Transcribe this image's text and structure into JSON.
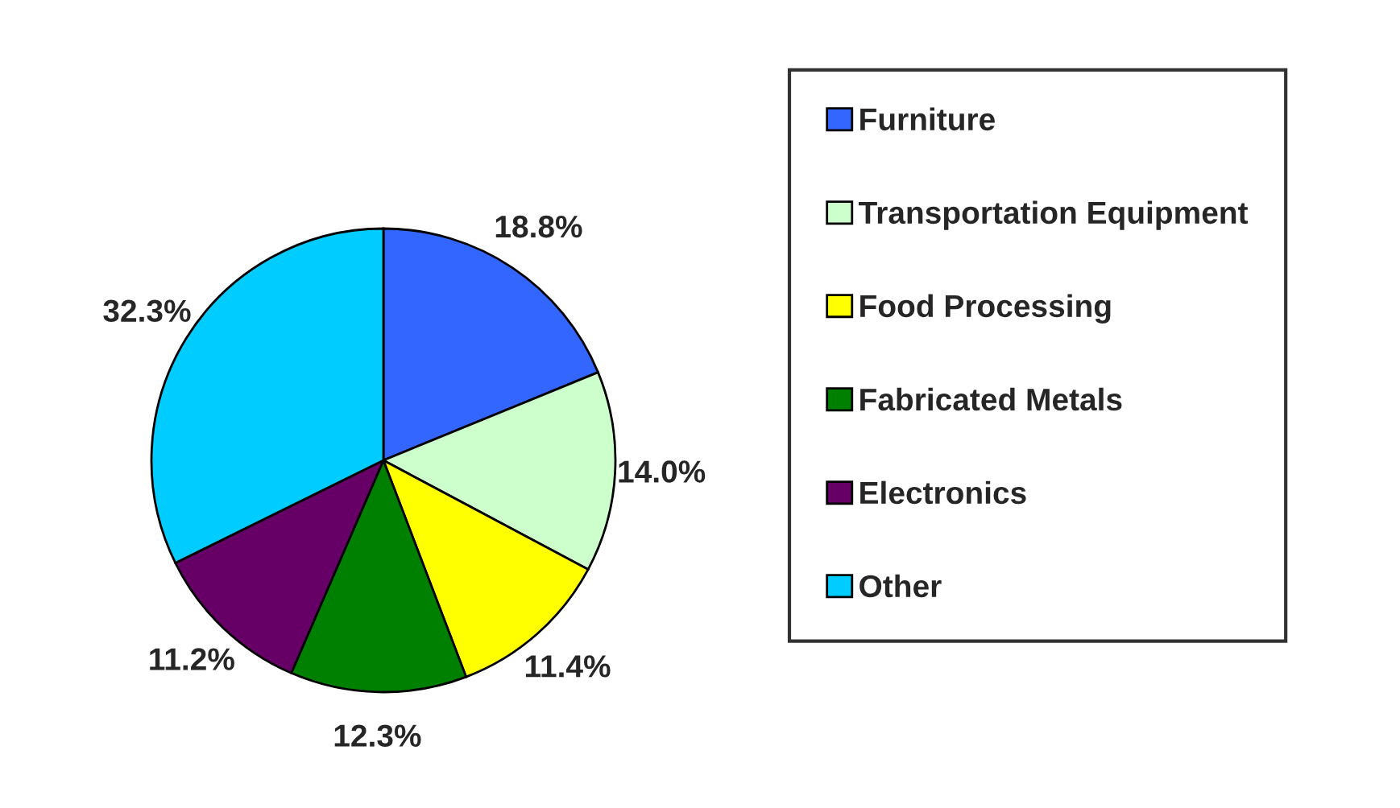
{
  "chart_data": {
    "type": "pie",
    "categories": [
      "Furniture",
      "Transportation Equipment",
      "Food Processing",
      "Fabricated Metals",
      "Electronics",
      "Other"
    ],
    "values": [
      18.8,
      14.0,
      11.4,
      12.3,
      11.2,
      32.3
    ],
    "colors": [
      "#3366ff",
      "#ccffcc",
      "#ffff00",
      "#008000",
      "#660066",
      "#00ccff"
    ],
    "value_labels": [
      "18.8%",
      "14.0%",
      "11.4%",
      "12.3%",
      "11.2%",
      "32.3%"
    ],
    "legend": "right"
  }
}
